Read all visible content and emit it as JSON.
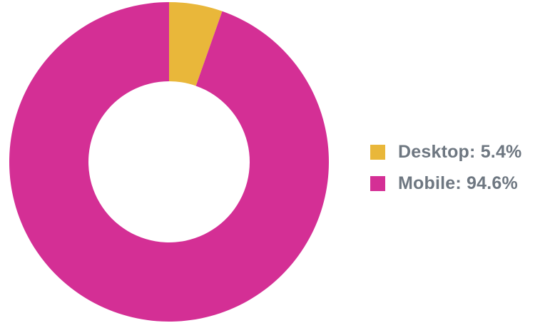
{
  "chart_data": {
    "type": "pie",
    "donut": true,
    "title": "",
    "slices": [
      {
        "label": "Desktop",
        "value": 5.4,
        "legend_text": "Desktop: 5.4%",
        "color": "#e9b73a"
      },
      {
        "label": "Mobile",
        "value": 94.6,
        "legend_text": "Mobile: 94.6%",
        "color": "#d42f95"
      }
    ],
    "legend_placement": "right",
    "start_angle": "top, clockwise"
  },
  "colors": {
    "background": "#ffffff",
    "legend_text": "#6e7781"
  }
}
